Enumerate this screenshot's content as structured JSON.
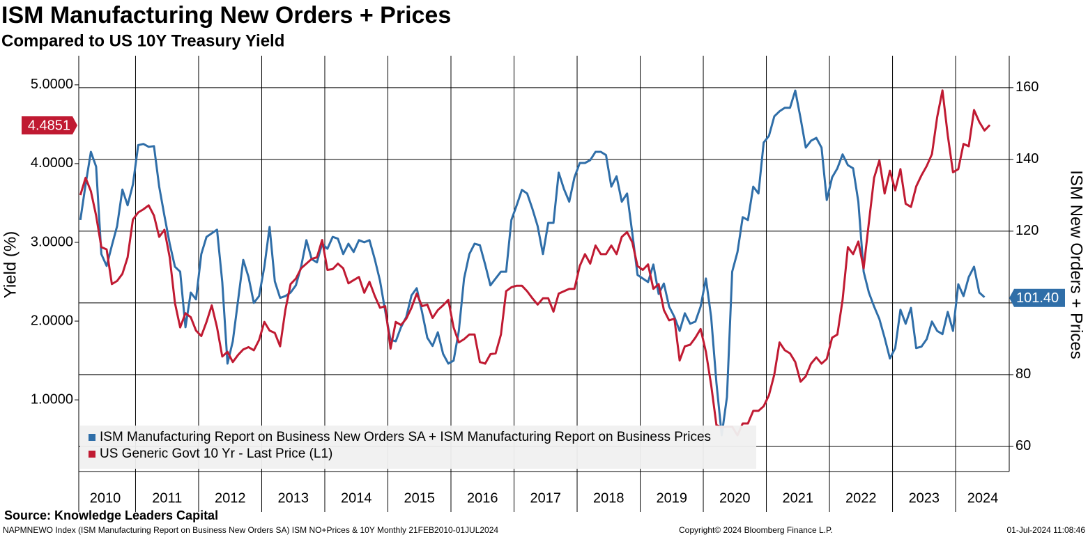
{
  "chart_data": {
    "type": "line",
    "title": "ISM Manufacturing New Orders + Prices",
    "subtitle": "Compared to US 10Y Treasury Yield",
    "ylabel": "Yield (%)",
    "y2label": "ISM New Orders + Prices",
    "source": "Source: Knowledge Leaders Capital",
    "footer_left": "NAPMNEWO Index (ISM Manufacturing Report on Business New Orders SA) ISM NO+Prices & 10Y  Monthly 21FEB2010-01JUL2024",
    "footer_center": "Copyright© 2024 Bloomberg Finance L.P.",
    "footer_right": "01-Jul-2024 11:08:46",
    "legend": "lower left",
    "grid": true,
    "xlim": [
      2010.1,
      2024.85
    ],
    "xticks": [
      2010,
      2011,
      2012,
      2013,
      2014,
      2015,
      2016,
      2017,
      2018,
      2019,
      2020,
      2021,
      2022,
      2023,
      2024
    ],
    "ylim": [
      0.09,
      5.37
    ],
    "yticks": [
      {
        "value": 1,
        "label": "1.0000"
      },
      {
        "value": 2,
        "label": "2.0000"
      },
      {
        "value": 3,
        "label": "3.0000"
      },
      {
        "value": 4,
        "label": "4.0000"
      },
      {
        "value": 5,
        "label": "5.0000"
      }
    ],
    "y2lim": [
      53,
      168.9
    ],
    "y2ticks": [
      60,
      80,
      100,
      120,
      140,
      160
    ],
    "x": [
      2010.125,
      2010.208,
      2010.292,
      2010.375,
      2010.458,
      2010.542,
      2010.625,
      2010.708,
      2010.792,
      2010.875,
      2010.958,
      2011.042,
      2011.125,
      2011.208,
      2011.292,
      2011.375,
      2011.458,
      2011.542,
      2011.625,
      2011.708,
      2011.792,
      2011.875,
      2011.958,
      2012.042,
      2012.125,
      2012.208,
      2012.292,
      2012.375,
      2012.458,
      2012.542,
      2012.625,
      2012.708,
      2012.792,
      2012.875,
      2012.958,
      2013.042,
      2013.125,
      2013.208,
      2013.292,
      2013.375,
      2013.458,
      2013.542,
      2013.625,
      2013.708,
      2013.792,
      2013.875,
      2013.958,
      2014.042,
      2014.125,
      2014.208,
      2014.292,
      2014.375,
      2014.458,
      2014.542,
      2014.625,
      2014.708,
      2014.792,
      2014.875,
      2014.958,
      2015.042,
      2015.125,
      2015.208,
      2015.292,
      2015.375,
      2015.458,
      2015.542,
      2015.625,
      2015.708,
      2015.792,
      2015.875,
      2015.958,
      2016.042,
      2016.125,
      2016.208,
      2016.292,
      2016.375,
      2016.458,
      2016.542,
      2016.625,
      2016.708,
      2016.792,
      2016.875,
      2016.958,
      2017.042,
      2017.125,
      2017.208,
      2017.292,
      2017.375,
      2017.458,
      2017.542,
      2017.625,
      2017.708,
      2017.792,
      2017.875,
      2017.958,
      2018.042,
      2018.125,
      2018.208,
      2018.292,
      2018.375,
      2018.458,
      2018.542,
      2018.625,
      2018.708,
      2018.792,
      2018.875,
      2018.958,
      2019.042,
      2019.125,
      2019.208,
      2019.292,
      2019.375,
      2019.458,
      2019.542,
      2019.625,
      2019.708,
      2019.792,
      2019.875,
      2019.958,
      2020.042,
      2020.125,
      2020.208,
      2020.292,
      2020.375,
      2020.458,
      2020.542,
      2020.625,
      2020.708,
      2020.792,
      2020.875,
      2020.958,
      2021.042,
      2021.125,
      2021.208,
      2021.292,
      2021.375,
      2021.458,
      2021.542,
      2021.625,
      2021.708,
      2021.792,
      2021.875,
      2021.958,
      2022.042,
      2022.125,
      2022.208,
      2022.292,
      2022.375,
      2022.458,
      2022.542,
      2022.625,
      2022.708,
      2022.792,
      2022.875,
      2022.958,
      2023.042,
      2023.125,
      2023.208,
      2023.292,
      2023.375,
      2023.458,
      2023.542,
      2023.625,
      2023.708,
      2023.792,
      2023.875,
      2023.958,
      2024.042,
      2024.125,
      2024.208,
      2024.292,
      2024.375,
      2024.458,
      2024.542
    ],
    "series": [
      {
        "name": "ISM Manufacturing Report on Business New Orders SA + ISM Manufacturing Report on Business Prices",
        "color": "#2f6ea8",
        "axis": "y2",
        "last_value": {
          "value": 101.4,
          "label": "101.40"
        },
        "values": [
          123.1,
          133,
          142.1,
          138,
          113.6,
          110.3,
          116,
          121.4,
          131.6,
          127.2,
          133,
          144,
          144.3,
          143.5,
          143.7,
          132.4,
          124.3,
          116.5,
          110.1,
          108.7,
          93.2,
          102.9,
          101,
          113.6,
          118.4,
          119.4,
          120.4,
          105.8,
          83.1,
          89.3,
          100.6,
          112,
          107.2,
          100,
          101.9,
          110.1,
          121.2,
          106,
          101.4,
          101.9,
          102.9,
          104.9,
          110.1,
          117.5,
          112.2,
          111.3,
          116.5,
          115.1,
          118.4,
          117.9,
          113.6,
          116.5,
          114.2,
          117.5,
          116.9,
          117.5,
          112.2,
          106.2,
          97.7,
          89.7,
          89.3,
          93.2,
          96.1,
          102.1,
          104.1,
          97.5,
          90.3,
          88,
          91.8,
          85.8,
          83.1,
          83.9,
          92.2,
          106.8,
          113.6,
          116.5,
          116.1,
          110.7,
          104.9,
          106.8,
          108.7,
          108.7,
          123.1,
          127.2,
          131.5,
          130.5,
          126.2,
          121.4,
          113.6,
          122.3,
          122.3,
          136.3,
          131.7,
          128.2,
          135,
          139,
          139,
          139.8,
          142.1,
          142.1,
          141.2,
          132.4,
          135.3,
          128.2,
          130.5,
          119.4,
          107.8,
          106.8,
          105.8,
          110.7,
          102.5,
          105.4,
          99,
          96.1,
          92.2,
          97.1,
          94.2,
          94.8,
          99,
          106.8,
          96.1,
          77.7,
          63.1,
          73.8,
          108.7,
          114.2,
          123.9,
          123.1,
          132.4,
          130.5,
          144.7,
          146.6,
          152,
          153.4,
          154.4,
          154.4,
          159.2,
          151.5,
          143.3,
          145.2,
          146,
          143.3,
          128.7,
          135,
          137.5,
          141.4,
          138.4,
          137.5,
          128.2,
          108.7,
          102.9,
          99,
          95.5,
          90.3,
          84.5,
          87.4,
          98.1,
          94.2,
          98.6,
          87.4,
          87.8,
          89.9,
          94.8,
          92.2,
          91.3,
          97.5,
          92.2,
          105.2,
          101.9,
          107.2,
          110.1,
          102.9,
          101.6,
          null
        ]
      },
      {
        "name": "US Generic Govt 10 Yr - Last Price (L1)",
        "color": "#c01a32",
        "axis": "y",
        "last_value": 4.4851,
        "values": [
          3.6,
          3.82,
          3.65,
          3.34,
          2.94,
          2.91,
          2.47,
          2.51,
          2.6,
          2.81,
          3.29,
          3.38,
          3.42,
          3.47,
          3.34,
          3.07,
          3.16,
          2.81,
          2.23,
          1.92,
          2.1,
          2.05,
          1.88,
          1.81,
          1.99,
          2.2,
          1.92,
          1.55,
          1.61,
          1.48,
          1.57,
          1.64,
          1.67,
          1.63,
          1.76,
          1.99,
          1.88,
          1.85,
          1.68,
          2.14,
          2.47,
          2.54,
          2.67,
          2.73,
          2.79,
          2.81,
          3.03,
          2.65,
          2.66,
          2.73,
          2.67,
          2.48,
          2.52,
          2.56,
          2.36,
          2.5,
          2.32,
          2.17,
          2.19,
          1.65,
          1.99,
          1.95,
          2.03,
          2.17,
          2.35,
          2.19,
          2.21,
          2.04,
          2.14,
          2.2,
          2.27,
          1.92,
          1.73,
          1.77,
          1.83,
          1.83,
          1.48,
          1.46,
          1.58,
          1.59,
          1.83,
          2.38,
          2.43,
          2.45,
          2.45,
          2.38,
          2.29,
          2.21,
          2.29,
          2.29,
          2.12,
          2.35,
          2.38,
          2.41,
          2.41,
          2.7,
          2.85,
          2.73,
          2.96,
          2.85,
          2.85,
          2.96,
          2.85,
          3.07,
          3.13,
          3.0,
          2.7,
          2.65,
          2.72,
          2.41,
          2.47,
          2.14,
          2.01,
          2.03,
          1.5,
          1.68,
          1.7,
          1.79,
          1.9,
          1.61,
          1.19,
          0.68,
          0.65,
          0.66,
          0.66,
          0.55,
          0.7,
          0.7,
          0.86,
          0.86,
          0.92,
          1.06,
          1.32,
          1.73,
          1.63,
          1.59,
          1.48,
          1.23,
          1.3,
          1.46,
          1.54,
          1.46,
          1.52,
          1.79,
          1.83,
          2.27,
          2.94,
          2.85,
          3.01,
          2.67,
          3.25,
          3.82,
          4.04,
          3.62,
          3.91,
          3.66,
          3.93,
          3.49,
          3.45,
          3.71,
          3.85,
          3.97,
          4.12,
          4.59,
          4.93,
          4.36,
          3.89,
          3.93,
          4.25,
          4.22,
          4.68,
          4.53,
          4.42,
          4.49
        ]
      }
    ]
  }
}
